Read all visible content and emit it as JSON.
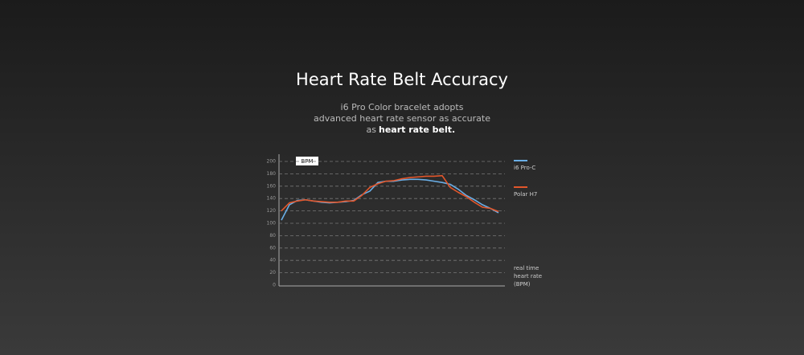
{
  "chart_data": {
    "type": "line",
    "title": "Heart Rate Belt Accuracy",
    "subtitle_lines": [
      "i6 Pro Color bracelet adopts",
      "advanced heart rate sensor as accurate",
      "as"
    ],
    "subtitle_bold": "heart rate belt.",
    "y_unit_tag": "BPM",
    "ylabel_lines": [
      "real time",
      "heart rate",
      "(BPM)"
    ],
    "x": [
      0,
      1,
      2,
      3,
      4,
      5,
      6,
      7,
      8,
      9,
      10,
      11,
      12,
      13,
      14,
      15,
      16,
      17,
      18,
      19,
      20,
      21,
      22,
      23,
      24,
      25,
      26,
      27
    ],
    "xlim": [
      -0.3,
      27.8
    ],
    "ylim": [
      0,
      200
    ],
    "yticks": [
      0,
      20,
      40,
      60,
      80,
      100,
      120,
      140,
      160,
      180,
      200
    ],
    "grid": true,
    "series": [
      {
        "name": "i6 Pro-C",
        "color": "#6aaee6",
        "values": [
          105,
          130,
          137,
          138,
          136,
          134,
          133,
          134,
          135,
          137,
          146,
          152,
          166,
          168,
          168,
          170,
          171,
          171,
          170,
          168,
          166,
          163,
          155,
          145,
          138,
          130,
          124,
          117
        ]
      },
      {
        "name": "Polar H7",
        "color": "#e2562b",
        "values": [
          120,
          133,
          136,
          138,
          136,
          135,
          134,
          134,
          136,
          136,
          145,
          158,
          164,
          168,
          169,
          172,
          174,
          175,
          176,
          176,
          177,
          158,
          150,
          143,
          134,
          126,
          124,
          119
        ]
      }
    ]
  }
}
